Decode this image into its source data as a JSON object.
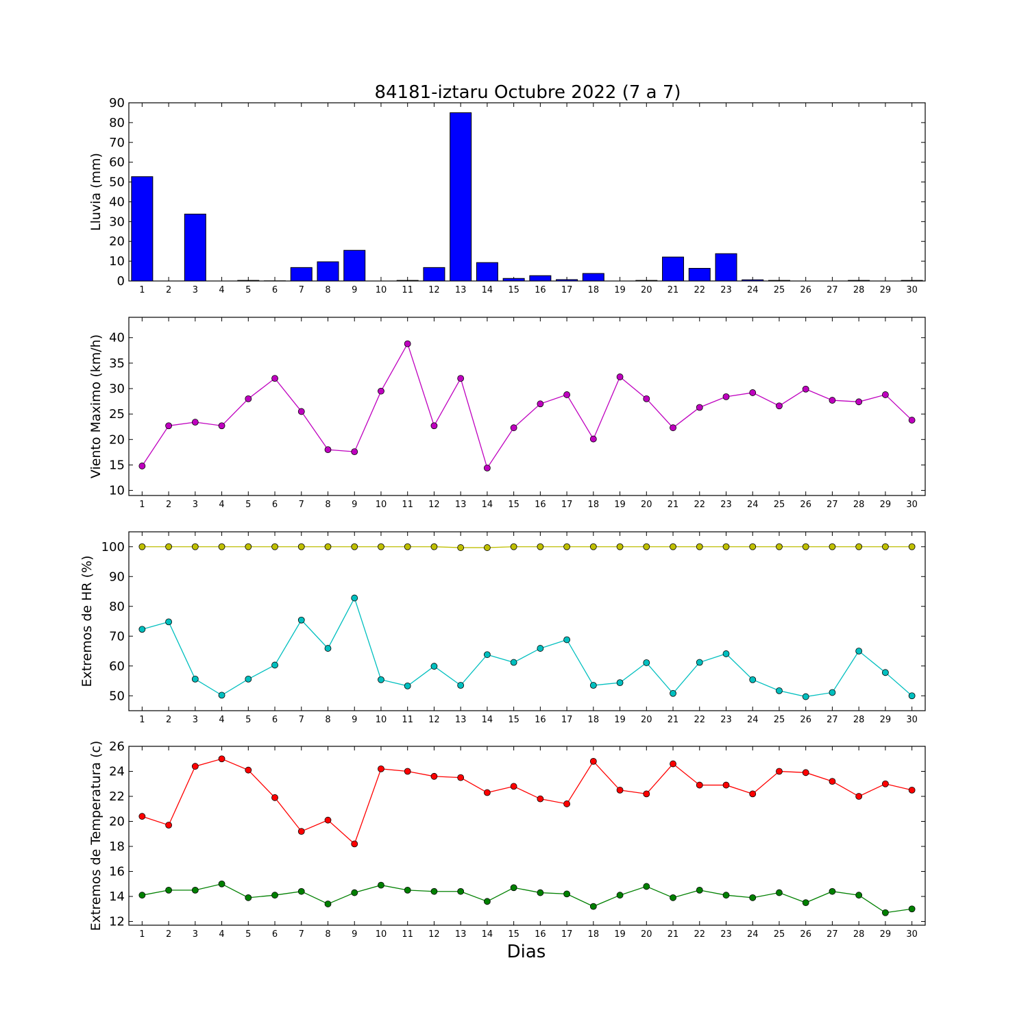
{
  "figure": {
    "title": "84181-iztaru Octubre 2022  (7 a 7)",
    "xlabel": "Dias"
  },
  "chart_data": [
    {
      "type": "bar",
      "ylabel": "Lluvia (mm)",
      "ylim": [
        0,
        90
      ],
      "yticks": [
        0,
        10,
        20,
        30,
        40,
        50,
        60,
        70,
        80,
        90
      ],
      "categories": [
        1,
        2,
        3,
        4,
        5,
        6,
        7,
        8,
        9,
        10,
        11,
        12,
        13,
        14,
        15,
        16,
        17,
        18,
        19,
        20,
        21,
        22,
        23,
        24,
        25,
        26,
        27,
        28,
        29,
        30
      ],
      "colors": {
        "bar": "#0000ff"
      },
      "series": [
        {
          "values": [
            52.7,
            0,
            33.8,
            0,
            0.3,
            0.1,
            6.8,
            9.7,
            15.5,
            0,
            0.3,
            6.8,
            85,
            9.3,
            1.3,
            2.7,
            0.7,
            3.8,
            0,
            0.3,
            12.1,
            6.4,
            13.8,
            0.6,
            0.3,
            0,
            0,
            0.3,
            0,
            0.3
          ],
          "color": "#0000ff"
        }
      ]
    },
    {
      "type": "line",
      "ylabel": "Viento Maximo (km/h)",
      "ylim": [
        9,
        44
      ],
      "yticks": [
        10,
        15,
        20,
        25,
        30,
        35,
        40
      ],
      "categories": [
        1,
        2,
        3,
        4,
        5,
        6,
        7,
        8,
        9,
        10,
        11,
        12,
        13,
        14,
        15,
        16,
        17,
        18,
        19,
        20,
        21,
        22,
        23,
        24,
        25,
        26,
        27,
        28,
        29,
        30
      ],
      "series": [
        {
          "values": [
            14.8,
            22.7,
            23.4,
            22.7,
            28,
            32,
            25.5,
            18,
            17.6,
            29.5,
            38.8,
            22.7,
            32,
            14.4,
            22.3,
            27,
            28.8,
            20.1,
            32.3,
            28,
            22.3,
            26.3,
            28.4,
            29.2,
            26.6,
            29.9,
            27.7,
            27.4,
            28.8,
            23.8
          ],
          "color": "#bf00bf"
        }
      ]
    },
    {
      "type": "line",
      "ylabel": "Extremos de HR (%)",
      "ylim": [
        45,
        105
      ],
      "yticks": [
        50,
        60,
        70,
        80,
        90,
        100
      ],
      "categories": [
        1,
        2,
        3,
        4,
        5,
        6,
        7,
        8,
        9,
        10,
        11,
        12,
        13,
        14,
        15,
        16,
        17,
        18,
        19,
        20,
        21,
        22,
        23,
        24,
        25,
        26,
        27,
        28,
        29,
        30
      ],
      "series": [
        {
          "values": [
            100,
            100,
            100,
            100,
            100,
            100,
            100,
            100,
            100,
            100,
            100,
            100,
            99.7,
            99.7,
            100,
            100,
            100,
            100,
            100,
            100,
            100,
            100,
            100,
            100,
            100,
            100,
            100,
            100,
            100,
            100
          ],
          "color": "#bfbf00"
        },
        {
          "values": [
            72.3,
            74.8,
            55.6,
            50.2,
            55.6,
            60.3,
            75.4,
            65.9,
            82.8,
            55.4,
            53.3,
            59.9,
            53.5,
            63.8,
            61.2,
            65.9,
            68.8,
            53.5,
            54.4,
            61.1,
            50.8,
            61.2,
            64.1,
            55.4,
            51.7,
            49.7,
            51.1,
            65,
            57.8,
            50
          ],
          "color": "#00bfbf"
        }
      ]
    },
    {
      "type": "line",
      "ylabel": "Extremos de Temperatura (c)",
      "ylim": [
        11.7,
        26
      ],
      "yticks": [
        12,
        14,
        16,
        18,
        20,
        22,
        24,
        26
      ],
      "categories": [
        1,
        2,
        3,
        4,
        5,
        6,
        7,
        8,
        9,
        10,
        11,
        12,
        13,
        14,
        15,
        16,
        17,
        18,
        19,
        20,
        21,
        22,
        23,
        24,
        25,
        26,
        27,
        28,
        29,
        30
      ],
      "series": [
        {
          "values": [
            20.4,
            19.7,
            24.4,
            25,
            24.1,
            21.9,
            19.2,
            20.1,
            18.2,
            24.2,
            24,
            23.6,
            23.5,
            22.3,
            22.8,
            21.8,
            21.4,
            24.8,
            22.5,
            22.2,
            24.6,
            22.9,
            22.9,
            22.2,
            24,
            23.9,
            23.2,
            22,
            23,
            22.5
          ],
          "color": "#ff0000"
        },
        {
          "values": [
            14.1,
            14.5,
            14.5,
            15,
            13.9,
            14.1,
            14.4,
            13.4,
            14.3,
            14.9,
            14.5,
            14.4,
            14.4,
            13.6,
            14.7,
            14.3,
            14.2,
            13.2,
            14.1,
            14.8,
            13.9,
            14.5,
            14.1,
            13.9,
            14.3,
            13.5,
            14.4,
            14.1,
            12.7,
            13
          ],
          "color": "#008000"
        }
      ]
    }
  ]
}
